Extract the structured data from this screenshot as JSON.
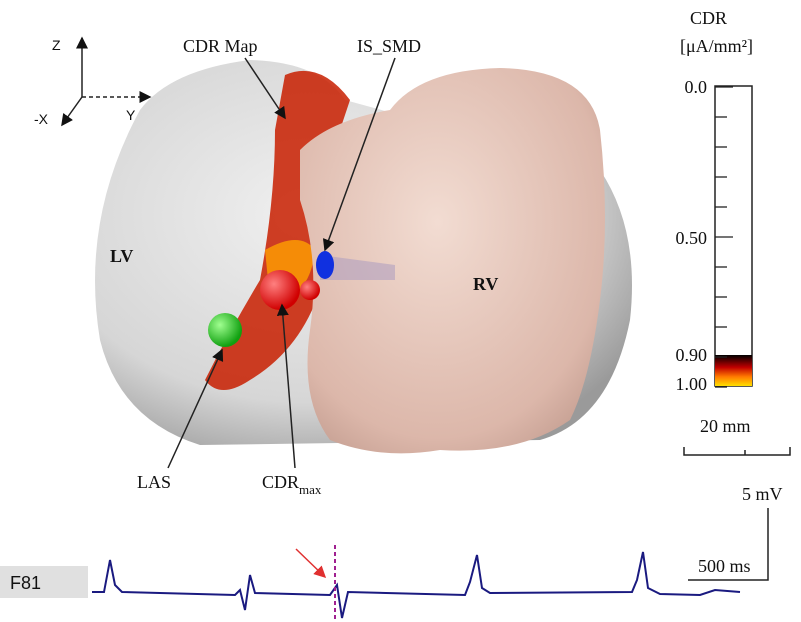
{
  "axes_labels": {
    "z": "Z",
    "y": "Y",
    "x": "-X"
  },
  "annotations": {
    "cdr_map": "CDR Map",
    "is_smd": "IS_SMD",
    "lv": "LV",
    "rv": "RV",
    "las": "LAS",
    "cdr_max": {
      "main": "CDR",
      "sub": "max"
    }
  },
  "colorbar": {
    "title": "CDR",
    "unit": "[μA/mm²]",
    "ticks": [
      "0.0",
      "0.50",
      "0.90",
      "1.00"
    ]
  },
  "scale_bar": "20 mm",
  "ecg": {
    "lead": "F81",
    "voltage_scale": "5 mV",
    "time_scale": "500 ms"
  }
}
